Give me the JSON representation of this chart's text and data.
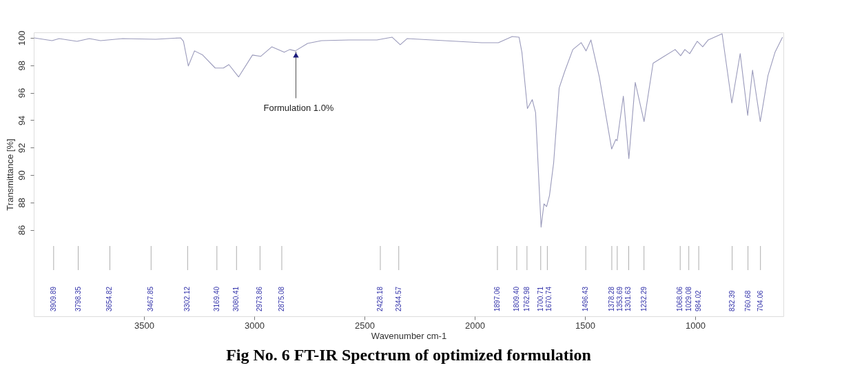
{
  "chart_data": {
    "type": "line",
    "title": "Fig No. 6 FT-IR Spectrum of optimized formulation",
    "xlabel": "Wavenumber cm-1",
    "ylabel": "Transmittance [%]",
    "xlim": [
      4000,
      600
    ],
    "ylim": [
      79.7,
      100.4
    ],
    "xticks": [
      3500,
      3000,
      2500,
      2000,
      1500,
      1000
    ],
    "yticks": [
      86,
      88,
      90,
      92,
      94,
      96,
      98,
      100
    ],
    "grid": false,
    "marker": "none",
    "line_style": "solid",
    "series": [
      {
        "color": "#9a9abb",
        "x": [
          3998,
          3917,
          3885,
          3804,
          3748,
          3697,
          3597,
          3447,
          3334,
          3321,
          3299,
          3271,
          3234,
          3177,
          3140,
          3115,
          3071,
          3008,
          2971,
          2920,
          2864,
          2839,
          2814,
          2758,
          2695,
          2570,
          2444,
          2375,
          2338,
          2306,
          2194,
          1968,
          1893,
          1830,
          1799,
          1786,
          1761,
          1739,
          1724,
          1699,
          1686,
          1674,
          1661,
          1642,
          1617,
          1592,
          1555,
          1517,
          1495,
          1473,
          1435,
          1379,
          1360,
          1354,
          1326,
          1301,
          1272,
          1232,
          1191,
          1141,
          1091,
          1066,
          1047,
          1025,
          991,
          966,
          941,
          878,
          834,
          796,
          762,
          740,
          705,
          670,
          638,
          604
        ],
        "values": [
          100.0,
          99.8,
          99.95,
          99.75,
          99.95,
          99.8,
          99.95,
          99.9,
          100.0,
          99.75,
          97.95,
          99.05,
          98.75,
          97.8,
          97.8,
          98.05,
          97.15,
          98.75,
          98.65,
          99.35,
          98.95,
          99.15,
          99.05,
          99.6,
          99.8,
          99.85,
          99.85,
          100.05,
          99.5,
          99.95,
          99.85,
          99.65,
          99.65,
          100.1,
          100.05,
          98.95,
          94.85,
          95.5,
          94.55,
          86.2,
          87.9,
          87.7,
          88.5,
          90.9,
          96.35,
          97.55,
          99.15,
          99.65,
          99.05,
          99.85,
          97.15,
          91.9,
          92.6,
          92.5,
          95.75,
          91.2,
          96.75,
          93.9,
          98.15,
          98.65,
          99.15,
          98.7,
          99.15,
          98.85,
          99.75,
          99.35,
          99.85,
          100.3,
          95.25,
          98.85,
          94.35,
          97.65,
          93.9,
          97.25,
          98.95,
          100.05
        ]
      }
    ],
    "annotations": [
      {
        "text": "Formulation 1.0%",
        "x": 2811,
        "y": 99.0
      }
    ],
    "ref_lines": [
      {
        "axis": "x",
        "value": 3909.89,
        "label": "3909.89",
        "color": "#999999"
      },
      {
        "axis": "x",
        "value": 3798.35,
        "label": "3798.35",
        "color": "#999999"
      },
      {
        "axis": "x",
        "value": 3654.82,
        "label": "3654.82",
        "color": "#999999"
      },
      {
        "axis": "x",
        "value": 3467.85,
        "label": "3467.85",
        "color": "#999999"
      },
      {
        "axis": "x",
        "value": 3302.12,
        "label": "3302.12",
        "color": "#999999"
      },
      {
        "axis": "x",
        "value": 3169.4,
        "label": "3169.40",
        "color": "#999999"
      },
      {
        "axis": "x",
        "value": 3080.41,
        "label": "3080.41",
        "color": "#999999"
      },
      {
        "axis": "x",
        "value": 2973.86,
        "label": "2973.86",
        "color": "#999999"
      },
      {
        "axis": "x",
        "value": 2875.08,
        "label": "2875.08",
        "color": "#999999"
      },
      {
        "axis": "x",
        "value": 2428.18,
        "label": "2428.18",
        "color": "#999999"
      },
      {
        "axis": "x",
        "value": 2344.57,
        "label": "2344.57",
        "color": "#999999"
      },
      {
        "axis": "x",
        "value": 1897.06,
        "label": "1897.06",
        "color": "#999999"
      },
      {
        "axis": "x",
        "value": 1809.4,
        "label": "1809.40",
        "color": "#999999"
      },
      {
        "axis": "x",
        "value": 1762.98,
        "label": "1762.98",
        "color": "#999999"
      },
      {
        "axis": "x",
        "value": 1700.71,
        "label": "1700.71",
        "color": "#999999"
      },
      {
        "axis": "x",
        "value": 1670.74,
        "label": "1670.74",
        "color": "#999999"
      },
      {
        "axis": "x",
        "value": 1496.43,
        "label": "1496.43",
        "color": "#999999"
      },
      {
        "axis": "x",
        "value": 1378.28,
        "label": "1378.28",
        "color": "#999999"
      },
      {
        "axis": "x",
        "value": 1353.69,
        "label": "1353.69",
        "color": "#999999"
      },
      {
        "axis": "x",
        "value": 1301.63,
        "label": "1301.63",
        "color": "#999999"
      },
      {
        "axis": "x",
        "value": 1232.29,
        "label": "1232.29",
        "color": "#999999"
      },
      {
        "axis": "x",
        "value": 1068.06,
        "label": "1068.06",
        "color": "#999999"
      },
      {
        "axis": "x",
        "value": 1029.08,
        "label": "1029.08",
        "color": "#999999"
      },
      {
        "axis": "x",
        "value": 984.02,
        "label": "984.02",
        "color": "#999999"
      },
      {
        "axis": "x",
        "value": 832.39,
        "label": "832.39",
        "color": "#999999"
      },
      {
        "axis": "x",
        "value": 760.68,
        "label": "760.68",
        "color": "#999999"
      },
      {
        "axis": "x",
        "value": 704.06,
        "label": "704.06",
        "color": "#999999"
      }
    ]
  }
}
